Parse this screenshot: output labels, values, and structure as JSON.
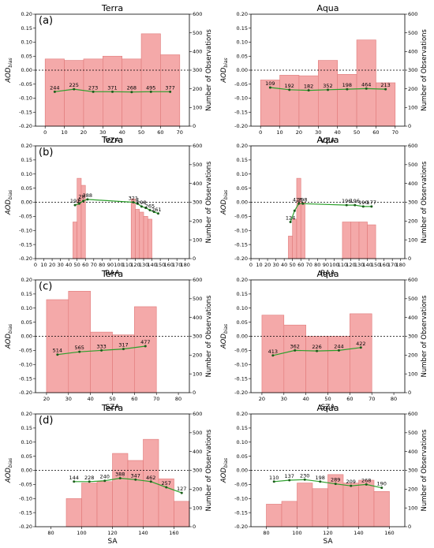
{
  "labels": {
    "ylabel_left_main": "AOD",
    "ylabel_left_sub": "bias",
    "ylabel_right": "Number of Observations"
  },
  "chart_data": [
    {
      "panel": "(a)",
      "title": "Terra",
      "type": "bar",
      "xlabel": "VZA",
      "xlim": [
        -5,
        75
      ],
      "xticks": [
        0,
        10,
        20,
        30,
        40,
        50,
        60,
        70
      ],
      "ylim": [
        -0.2,
        0.2
      ],
      "yticks": [
        -0.2,
        -0.15,
        -0.1,
        -0.05,
        0.0,
        0.05,
        0.1,
        0.15,
        0.2
      ],
      "y2lim": [
        0,
        600
      ],
      "y2ticks": [
        0,
        100,
        200,
        300,
        400,
        500,
        600
      ],
      "bin_edges": [
        0,
        10,
        20,
        30,
        40,
        50,
        60,
        70
      ],
      "bars": [
        0.04,
        0.035,
        0.04,
        0.05,
        0.04,
        0.13,
        0.055
      ],
      "line_x": [
        5,
        15,
        25,
        35,
        45,
        55,
        65
      ],
      "line_y": [
        -0.077,
        -0.068,
        -0.077,
        -0.077,
        -0.078,
        -0.077,
        -0.077
      ],
      "counts": [
        244,
        225,
        273,
        371,
        268,
        495,
        377
      ]
    },
    {
      "panel": "",
      "title": "Aqua",
      "type": "bar",
      "xlabel": "VZA",
      "xlim": [
        -5,
        75
      ],
      "xticks": [
        0,
        10,
        20,
        30,
        40,
        50,
        60,
        70
      ],
      "ylim": [
        -0.2,
        0.2
      ],
      "yticks": [
        -0.2,
        -0.15,
        -0.1,
        -0.05,
        0.0,
        0.05,
        0.1,
        0.15,
        0.2
      ],
      "y2lim": [
        0,
        600
      ],
      "y2ticks": [
        0,
        100,
        200,
        300,
        400,
        500,
        600
      ],
      "bin_edges": [
        0,
        10,
        20,
        30,
        40,
        50,
        60,
        70
      ],
      "bars": [
        -0.035,
        -0.018,
        -0.02,
        0.035,
        -0.015,
        0.108,
        -0.045
      ],
      "line_x": [
        5,
        15,
        25,
        35,
        45,
        55,
        65
      ],
      "line_y": [
        -0.062,
        -0.07,
        -0.072,
        -0.07,
        -0.068,
        -0.066,
        -0.068
      ],
      "counts": [
        109,
        192,
        182,
        352,
        198,
        464,
        213
      ]
    },
    {
      "panel": "(b)",
      "title": "Terra",
      "type": "bar",
      "xlabel": "RAA",
      "xlim": [
        0,
        185
      ],
      "xticks": [
        0,
        10,
        20,
        30,
        40,
        50,
        60,
        70,
        80,
        90,
        100,
        110,
        120,
        130,
        140,
        150,
        160,
        170,
        180
      ],
      "ylim": [
        -0.2,
        0.2
      ],
      "yticks": [
        -0.2,
        -0.15,
        -0.1,
        -0.05,
        0.0,
        0.05,
        0.1,
        0.15,
        0.2
      ],
      "y2lim": [
        0,
        600
      ],
      "y2ticks": [
        0,
        100,
        200,
        300,
        400,
        500,
        600
      ],
      "bin_edges": [
        45,
        50,
        55,
        60,
        65,
        70,
        115,
        120,
        125,
        130,
        135,
        140,
        145,
        150
      ],
      "bars": [
        -0.07,
        0.085,
        0.06,
        null,
        null,
        0.012,
        -0.025,
        -0.035,
        -0.05,
        -0.06
      ],
      "bar_edges": [
        [
          45,
          50
        ],
        [
          50,
          55
        ],
        [
          55,
          60
        ],
        [
          115,
          120
        ],
        [
          120,
          125
        ],
        [
          125,
          130
        ],
        [
          130,
          135
        ],
        [
          135,
          140
        ],
        [
          140,
          145
        ],
        [
          145,
          150
        ]
      ],
      "line_x": [
        47.5,
        52.5,
        57.5,
        62.5,
        117.5,
        122.5,
        127.5,
        132.5,
        137.5,
        142.5,
        147.5
      ],
      "line_y": [
        -0.01,
        -0.005,
        0.005,
        0.01,
        0.0,
        -0.005,
        -0.015,
        -0.02,
        -0.028,
        -0.034,
        -0.04
      ],
      "label_points": [
        [
          47.5,
          -0.01,
          "191"
        ],
        [
          52.5,
          -0.005,
          "4"
        ],
        [
          55.5,
          0.005,
          "28"
        ],
        [
          62.5,
          0.01,
          "388"
        ],
        [
          117.5,
          0.0,
          "321"
        ],
        [
          122.5,
          -0.005,
          "2"
        ],
        [
          127.5,
          -0.015,
          "298"
        ],
        [
          137.5,
          -0.028,
          "265"
        ],
        [
          145.5,
          -0.04,
          "261"
        ]
      ]
    },
    {
      "panel": "",
      "title": "Aqua",
      "type": "bar",
      "xlabel": "RAA",
      "xlim": [
        0,
        185
      ],
      "xticks": [
        0,
        10,
        20,
        30,
        40,
        50,
        60,
        70,
        80,
        90,
        100,
        110,
        120,
        130,
        140,
        150,
        160,
        170,
        180
      ],
      "ylim": [
        -0.2,
        0.2
      ],
      "yticks": [
        -0.2,
        -0.15,
        -0.1,
        -0.05,
        0.0,
        0.05,
        0.1,
        0.15,
        0.2
      ],
      "y2lim": [
        0,
        600
      ],
      "y2ticks": [
        0,
        100,
        200,
        300,
        400,
        500,
        600
      ],
      "bar_edges": [
        [
          45,
          50
        ],
        [
          50,
          55
        ],
        [
          55,
          60
        ],
        [
          60,
          65
        ],
        [
          110,
          120
        ],
        [
          120,
          130
        ],
        [
          130,
          140
        ],
        [
          140,
          150
        ]
      ],
      "bars": [
        -0.12,
        -0.06,
        0.085,
        0.0,
        -0.07,
        -0.07,
        -0.07,
        -0.08
      ],
      "line_x": [
        47.5,
        52.5,
        57.5,
        62.5,
        115,
        125,
        135,
        145
      ],
      "line_y": [
        -0.07,
        -0.03,
        -0.005,
        -0.005,
        -0.01,
        -0.01,
        -0.015,
        -0.015
      ],
      "label_points": [
        [
          47.5,
          -0.07,
          "124"
        ],
        [
          56,
          -0.005,
          "426"
        ],
        [
          62,
          -0.005,
          "298"
        ],
        [
          115,
          -0.01,
          "196"
        ],
        [
          125,
          -0.01,
          "196"
        ],
        [
          135,
          -0.015,
          "190"
        ],
        [
          145,
          -0.015,
          "177"
        ]
      ]
    },
    {
      "panel": "(c)",
      "title": "Terra",
      "type": "bar",
      "xlabel": "SZA",
      "xlim": [
        15,
        85
      ],
      "xticks": [
        20,
        30,
        40,
        50,
        60,
        70,
        80
      ],
      "ylim": [
        -0.2,
        0.2
      ],
      "yticks": [
        -0.2,
        -0.15,
        -0.1,
        -0.05,
        0.0,
        0.05,
        0.1,
        0.15,
        0.2
      ],
      "y2lim": [
        0,
        600
      ],
      "y2ticks": [
        0,
        100,
        200,
        300,
        400,
        500,
        600
      ],
      "bar_edges": [
        [
          20,
          30
        ],
        [
          30,
          40
        ],
        [
          40,
          50
        ],
        [
          50,
          60
        ],
        [
          60,
          70
        ]
      ],
      "bars": [
        0.13,
        0.16,
        0.015,
        0.005,
        0.105
      ],
      "line_x": [
        25,
        35,
        45,
        55,
        65
      ],
      "line_y": [
        -0.065,
        -0.055,
        -0.05,
        -0.045,
        -0.035
      ],
      "counts": [
        514,
        565,
        333,
        317,
        477
      ]
    },
    {
      "panel": "",
      "title": "Aqua",
      "type": "bar",
      "xlabel": "SZA",
      "xlim": [
        15,
        85
      ],
      "xticks": [
        20,
        30,
        40,
        50,
        60,
        70,
        80
      ],
      "ylim": [
        -0.2,
        0.2
      ],
      "yticks": [
        -0.2,
        -0.15,
        -0.1,
        -0.05,
        0.0,
        0.05,
        0.1,
        0.15,
        0.2
      ],
      "y2lim": [
        0,
        600
      ],
      "y2ticks": [
        0,
        100,
        200,
        300,
        400,
        500,
        600
      ],
      "bar_edges": [
        [
          20,
          30
        ],
        [
          30,
          40
        ],
        [
          40,
          50
        ],
        [
          50,
          60
        ],
        [
          60,
          70
        ]
      ],
      "bars": [
        0.075,
        0.04,
        0.0,
        0.0,
        0.08
      ],
      "line_x": [
        25,
        35,
        45,
        55,
        65
      ],
      "line_y": [
        -0.068,
        -0.05,
        -0.052,
        -0.05,
        -0.04
      ],
      "counts": [
        413,
        362,
        226,
        244,
        422
      ]
    },
    {
      "panel": "(d)",
      "title": "Terra",
      "type": "bar",
      "xlabel": "SA",
      "xlim": [
        70,
        170
      ],
      "xticks": [
        80,
        100,
        120,
        140,
        160
      ],
      "ylim": [
        -0.2,
        0.2
      ],
      "yticks": [
        -0.2,
        -0.15,
        -0.1,
        -0.05,
        0.0,
        0.05,
        0.1,
        0.15,
        0.2
      ],
      "y2lim": [
        0,
        600
      ],
      "y2ticks": [
        0,
        100,
        200,
        300,
        400,
        500,
        600
      ],
      "bar_edges": [
        [
          90,
          100
        ],
        [
          100,
          110
        ],
        [
          110,
          120
        ],
        [
          120,
          130
        ],
        [
          130,
          140
        ],
        [
          140,
          150
        ],
        [
          150,
          160
        ],
        [
          160,
          170
        ]
      ],
      "bars": [
        -0.1,
        -0.045,
        -0.04,
        0.06,
        0.035,
        0.11,
        -0.03,
        -0.11
      ],
      "line_x": [
        95,
        105,
        115,
        125,
        135,
        145,
        155,
        165
      ],
      "line_y": [
        -0.04,
        -0.04,
        -0.037,
        -0.028,
        -0.033,
        -0.04,
        -0.06,
        -0.08
      ],
      "counts": [
        144,
        228,
        240,
        388,
        347,
        462,
        257,
        127
      ]
    },
    {
      "panel": "",
      "title": "Aqua",
      "type": "bar",
      "xlabel": "SA",
      "xlim": [
        70,
        170
      ],
      "xticks": [
        80,
        100,
        120,
        140,
        160
      ],
      "ylim": [
        -0.2,
        0.2
      ],
      "yticks": [
        -0.2,
        -0.15,
        -0.1,
        -0.05,
        0.0,
        0.05,
        0.1,
        0.15,
        0.2
      ],
      "y2lim": [
        0,
        600
      ],
      "y2ticks": [
        0,
        100,
        200,
        300,
        400,
        500,
        600
      ],
      "bar_edges": [
        [
          80,
          90
        ],
        [
          90,
          100
        ],
        [
          100,
          110
        ],
        [
          110,
          120
        ],
        [
          120,
          130
        ],
        [
          130,
          140
        ],
        [
          140,
          150
        ],
        [
          150,
          160
        ]
      ],
      "bars": [
        -0.12,
        -0.11,
        -0.045,
        -0.065,
        -0.015,
        -0.045,
        -0.035,
        -0.075
      ],
      "line_x": [
        85,
        95,
        105,
        115,
        125,
        135,
        145,
        155
      ],
      "line_y": [
        -0.04,
        -0.035,
        -0.033,
        -0.04,
        -0.048,
        -0.055,
        -0.05,
        -0.062
      ],
      "counts": [
        110,
        137,
        230,
        198,
        289,
        209,
        268,
        190
      ]
    }
  ]
}
